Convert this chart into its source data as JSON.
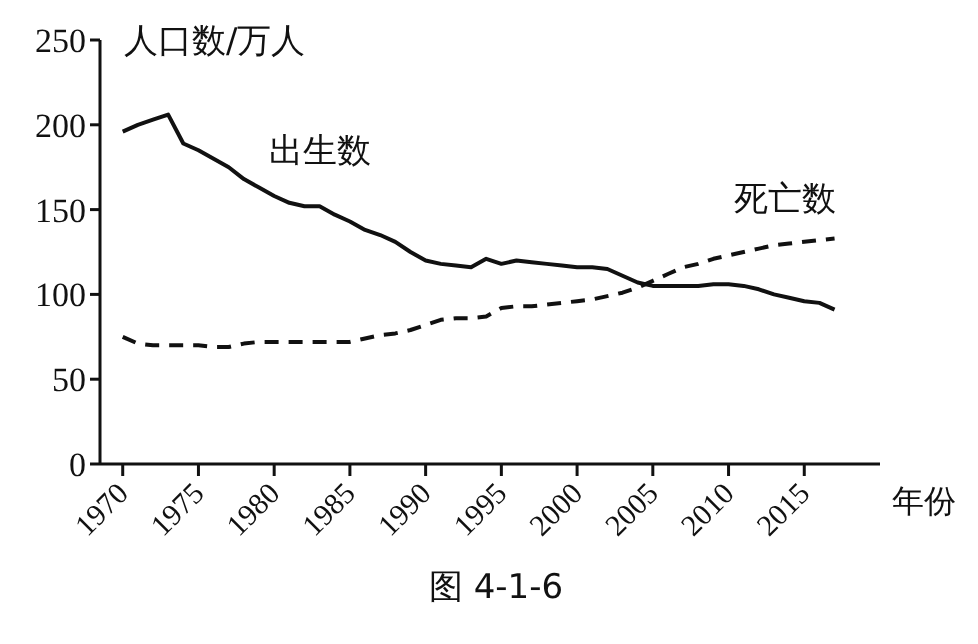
{
  "chart_data": {
    "type": "line",
    "ylabel": "人口数/万人",
    "xlabel": "年份",
    "annotations": [
      "图 4-1-6"
    ],
    "x": [
      1970,
      1971,
      1972,
      1973,
      1974,
      1975,
      1976,
      1977,
      1978,
      1979,
      1980,
      1981,
      1982,
      1983,
      1984,
      1985,
      1986,
      1987,
      1988,
      1989,
      1990,
      1991,
      1992,
      1993,
      1994,
      1995,
      1996,
      1997,
      1998,
      1999,
      2000,
      2001,
      2002,
      2003,
      2004,
      2005,
      2006,
      2007,
      2008,
      2009,
      2010,
      2011,
      2012,
      2013,
      2014,
      2015,
      2016,
      2017
    ],
    "series": [
      {
        "name": "出生数",
        "color": "#111111",
        "line_style": "solid",
        "values": [
          196,
          200,
          203,
          206,
          189,
          185,
          180,
          175,
          168,
          163,
          158,
          154,
          152,
          152,
          147,
          143,
          138,
          135,
          131,
          125,
          120,
          118,
          117,
          116,
          121,
          118,
          120,
          119,
          118,
          117,
          116,
          116,
          115,
          111,
          107,
          105,
          105,
          105,
          105,
          106,
          106,
          105,
          103,
          100,
          98,
          96,
          95,
          91
        ]
      },
      {
        "name": "死亡数",
        "color": "#111111",
        "line_style": "dashed",
        "values": [
          75,
          71,
          70,
          70,
          70,
          70,
          69,
          69,
          71,
          72,
          72,
          72,
          72,
          72,
          72,
          72,
          74,
          76,
          77,
          79,
          82,
          85,
          86,
          86,
          87,
          92,
          93,
          93,
          94,
          95,
          96,
          97,
          99,
          101,
          104,
          108,
          112,
          116,
          118,
          121,
          123,
          125,
          127,
          129,
          130,
          131,
          132,
          133
        ]
      }
    ],
    "xlim": [
      1968.5,
      2020
    ],
    "xticks": [
      1970,
      1975,
      1980,
      1985,
      1990,
      1995,
      2000,
      2005,
      2010,
      2015
    ],
    "ylim": [
      0,
      250
    ],
    "yticks": [
      0,
      50,
      100,
      150,
      200,
      250
    ],
    "grid": false,
    "legend": false,
    "marker": "none"
  }
}
